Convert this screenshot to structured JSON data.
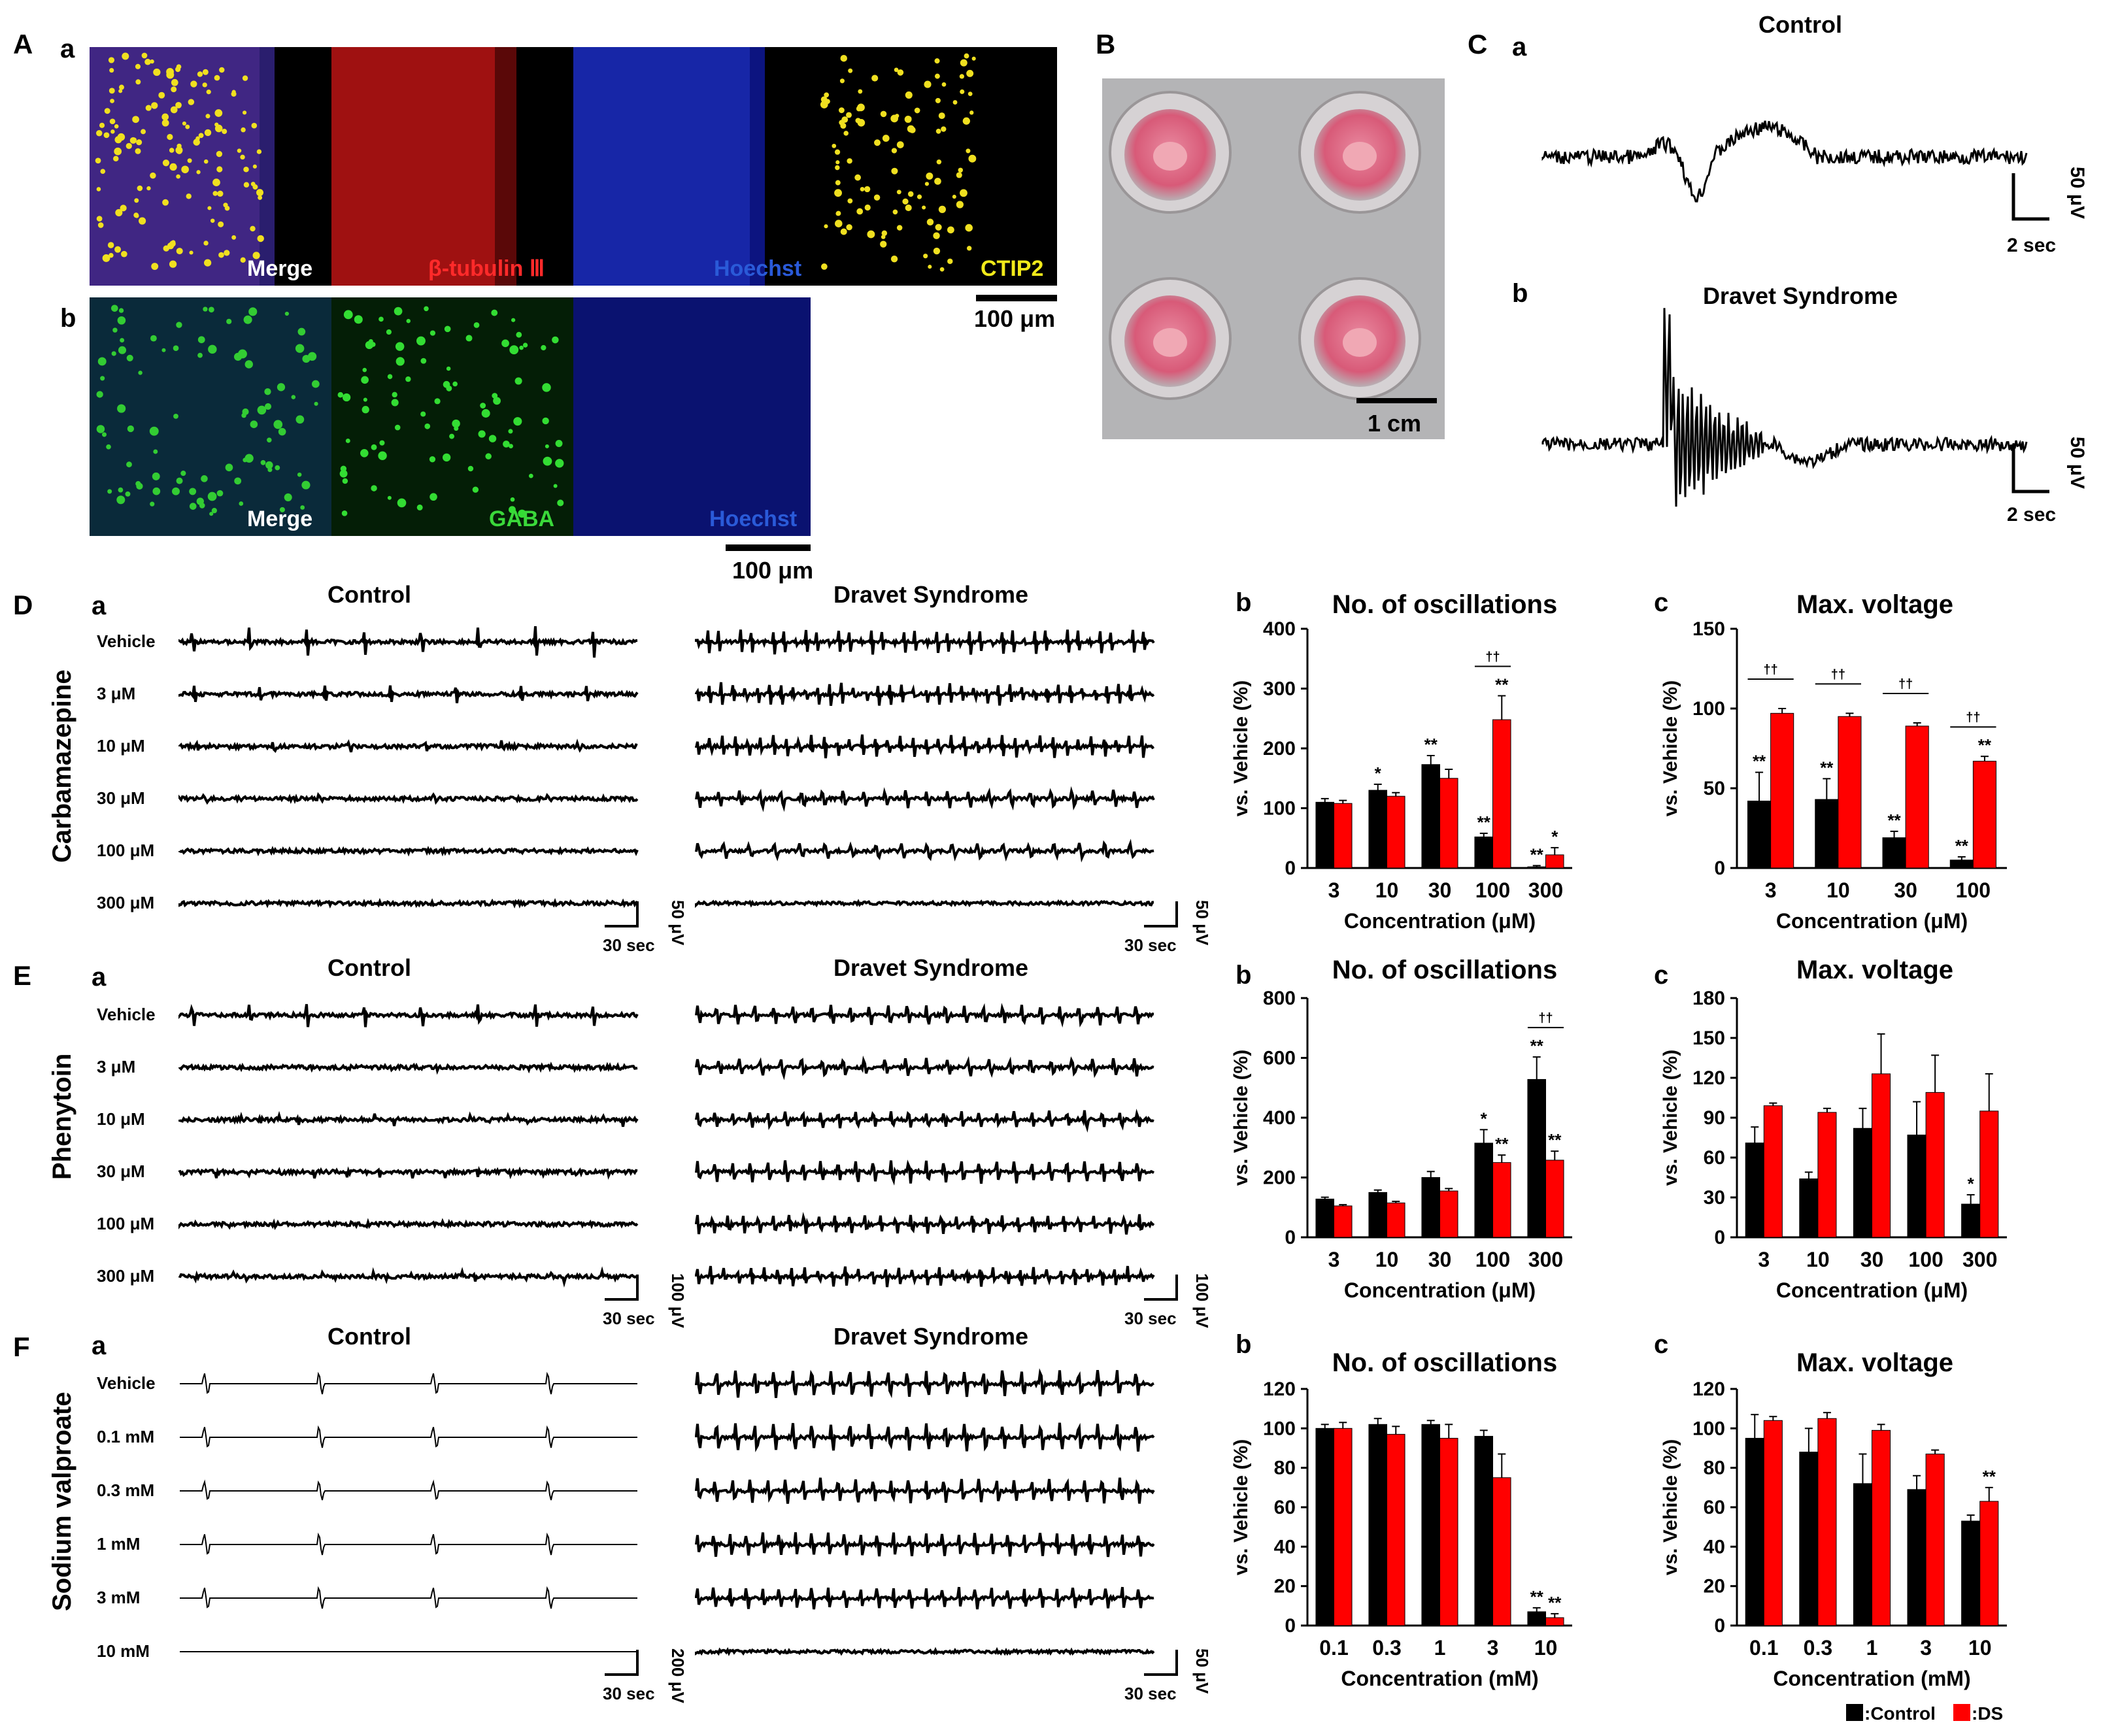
{
  "figure": {
    "panel_letters": [
      "A",
      "B",
      "C",
      "D",
      "E",
      "F"
    ],
    "sub_letters": {
      "a": "a",
      "b": "b",
      "c": "c"
    },
    "A": {
      "a_labels": [
        "Merge",
        "β-tubulin Ⅲ",
        "Hoechst",
        "CTIP2"
      ],
      "b_labels": [
        "Merge",
        "GABA",
        "Hoechst"
      ],
      "scale": "100 μm",
      "colors": {
        "merge": "#3a2a8a",
        "tubulin": "#d41c1c",
        "hoechst": "#1a2aa8",
        "ctip2": "#d8d21a",
        "gaba": "#1fae2a"
      }
    },
    "B": {
      "scale": "1 cm"
    },
    "C": {
      "control_title": "Control",
      "ds_title": "Dravet Syndrome",
      "amp": "50 μV",
      "time": "2 sec"
    },
    "groups": {
      "control": "Control",
      "ds": "Dravet Syndrome"
    },
    "drugs": [
      "Carbamazepine",
      "Phenytoin",
      "Sodium valproate"
    ],
    "conc_labels": {
      "D": [
        "Vehicle",
        "3 μM",
        "10 μM",
        "30 μM",
        "100 μM",
        "300 μM"
      ],
      "E": [
        "Vehicle",
        "3 μM",
        "10 μM",
        "30 μM",
        "100 μM",
        "300 μM"
      ],
      "F": [
        "Vehicle",
        "0.1 mM",
        "0.3 mM",
        "1 mM",
        "3 mM",
        "10 mM"
      ]
    },
    "trace_scales": {
      "D": {
        "ctrl_amp": "50 μV",
        "ds_amp": "50 μV",
        "time": "30 sec"
      },
      "E": {
        "ctrl_amp": "100 μV",
        "ds_amp": "100 μV",
        "time": "30 sec"
      },
      "F": {
        "ctrl_amp": "200 μV",
        "ds_amp": "50 μV",
        "time": "30 sec"
      }
    },
    "legend": {
      "control": ":Control",
      "ds": ":DS"
    },
    "colors": {
      "control": "#000000",
      "ds": "#ff0000"
    }
  },
  "chart_data": [
    {
      "id": "Db",
      "type": "bar",
      "title": "No. of oscillations",
      "xlabel": "Concentration (μM)",
      "ylabel": "vs. Vehicle (%)",
      "categories": [
        "3",
        "10",
        "30",
        "100",
        "300"
      ],
      "ylim": [
        0,
        400
      ],
      "yticks": [
        0,
        100,
        200,
        300,
        400
      ],
      "series": [
        {
          "name": "Control",
          "values": [
            110,
            130,
            173,
            52,
            2
          ],
          "errors": [
            6,
            10,
            15,
            6,
            2
          ],
          "marks": [
            "",
            "*",
            "**",
            "**",
            "**"
          ]
        },
        {
          "name": "DS",
          "values": [
            108,
            120,
            150,
            248,
            22
          ],
          "errors": [
            5,
            6,
            15,
            40,
            12
          ],
          "marks": [
            "",
            "",
            "",
            "**",
            "*"
          ]
        }
      ],
      "daggers": [
        3
      ]
    },
    {
      "id": "Dc",
      "type": "bar",
      "title": "Max. voltage",
      "xlabel": "Concentration (μM)",
      "ylabel": "vs. Vehicle (%)",
      "categories": [
        "3",
        "10",
        "30",
        "100"
      ],
      "ylim": [
        0,
        150
      ],
      "yticks": [
        0,
        50,
        100,
        150
      ],
      "series": [
        {
          "name": "Control",
          "values": [
            42,
            43,
            19,
            5
          ],
          "errors": [
            18,
            13,
            4,
            2
          ],
          "marks": [
            "**",
            "**",
            "**",
            "**"
          ]
        },
        {
          "name": "DS",
          "values": [
            97,
            95,
            89,
            67
          ],
          "errors": [
            3,
            2,
            2,
            3
          ],
          "marks": [
            "",
            "",
            "",
            "**"
          ]
        }
      ],
      "daggers": [
        0,
        1,
        2,
        3
      ]
    },
    {
      "id": "Eb",
      "type": "bar",
      "title": "No. of oscillations",
      "xlabel": "Concentration (μM)",
      "ylabel": "vs. Vehicle (%)",
      "categories": [
        "3",
        "10",
        "30",
        "100",
        "300"
      ],
      "ylim": [
        0,
        800
      ],
      "yticks": [
        0,
        200,
        400,
        600,
        800
      ],
      "series": [
        {
          "name": "Control",
          "values": [
            128,
            150,
            200,
            315,
            528
          ],
          "errors": [
            6,
            8,
            20,
            45,
            75
          ],
          "marks": [
            "",
            "",
            "",
            "*",
            "**"
          ]
        },
        {
          "name": "DS",
          "values": [
            105,
            115,
            155,
            250,
            258
          ],
          "errors": [
            4,
            5,
            8,
            25,
            30
          ],
          "marks": [
            "",
            "",
            "",
            "**",
            "**"
          ]
        }
      ],
      "daggers": [
        4
      ]
    },
    {
      "id": "Ec",
      "type": "bar",
      "title": "Max. voltage",
      "xlabel": "Concentration (μM)",
      "ylabel": "vs. Vehicle (%)",
      "categories": [
        "3",
        "10",
        "30",
        "100",
        "300"
      ],
      "ylim": [
        0,
        180
      ],
      "yticks": [
        0,
        30,
        60,
        90,
        120,
        150,
        180
      ],
      "series": [
        {
          "name": "Control",
          "values": [
            71,
            44,
            82,
            77,
            25
          ],
          "errors": [
            12,
            5,
            15,
            25,
            7
          ],
          "marks": [
            "",
            "",
            "",
            "",
            "*"
          ]
        },
        {
          "name": "DS",
          "values": [
            99,
            94,
            123,
            109,
            95
          ],
          "errors": [
            2,
            3,
            30,
            28,
            28
          ],
          "marks": [
            "",
            "",
            "",
            "",
            ""
          ]
        }
      ],
      "daggers": []
    },
    {
      "id": "Fb",
      "type": "bar",
      "title": "No. of oscillations",
      "xlabel": "Concentration (mM)",
      "ylabel": "vs. Vehicle (%)",
      "categories": [
        "0.1",
        "0.3",
        "1",
        "3",
        "10"
      ],
      "ylim": [
        0,
        120
      ],
      "yticks": [
        0,
        20,
        40,
        60,
        80,
        100,
        120
      ],
      "series": [
        {
          "name": "Control",
          "values": [
            100,
            102,
            102,
            96,
            7
          ],
          "errors": [
            2,
            3,
            2,
            3,
            2
          ],
          "marks": [
            "",
            "",
            "",
            "",
            "**"
          ]
        },
        {
          "name": "DS",
          "values": [
            100,
            97,
            95,
            75,
            4
          ],
          "errors": [
            3,
            4,
            7,
            12,
            2
          ],
          "marks": [
            "",
            "",
            "",
            "",
            "**"
          ]
        }
      ],
      "daggers": []
    },
    {
      "id": "Fc",
      "type": "bar",
      "title": "Max. voltage",
      "xlabel": "Concentration (mM)",
      "ylabel": "vs. Vehicle (%)",
      "categories": [
        "0.1",
        "0.3",
        "1",
        "3",
        "10"
      ],
      "ylim": [
        0,
        120
      ],
      "yticks": [
        0,
        20,
        40,
        60,
        80,
        100,
        120
      ],
      "series": [
        {
          "name": "Control",
          "values": [
            95,
            88,
            72,
            69,
            53
          ],
          "errors": [
            12,
            12,
            15,
            7,
            3
          ],
          "marks": [
            "",
            "",
            "",
            "",
            ""
          ]
        },
        {
          "name": "DS",
          "values": [
            104,
            105,
            99,
            87,
            63
          ],
          "errors": [
            2,
            3,
            3,
            2,
            7
          ],
          "marks": [
            "",
            "",
            "",
            "",
            "**"
          ]
        }
      ],
      "daggers": []
    }
  ]
}
